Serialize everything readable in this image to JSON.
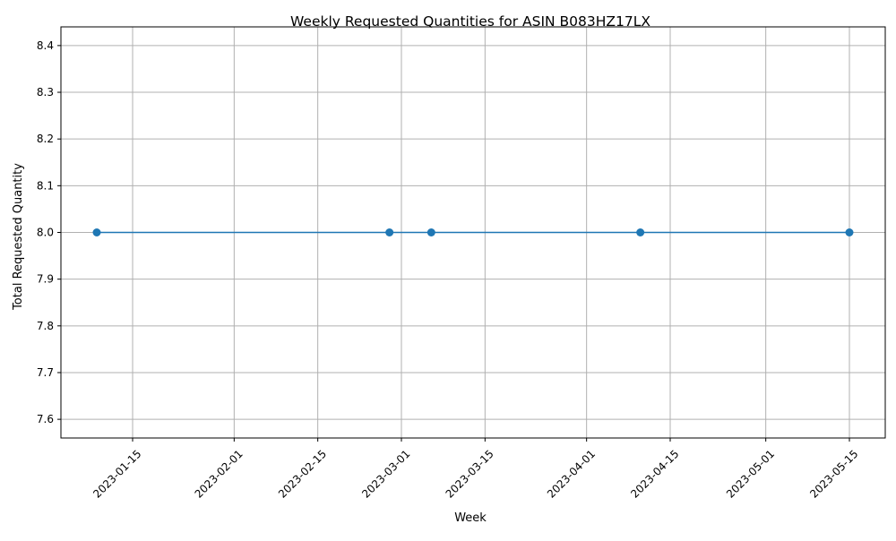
{
  "chart_data": {
    "type": "line",
    "title": "Weekly Requested Quantities for ASIN B083HZ17LX",
    "xlabel": "Week",
    "ylabel": "Total Requested Quantity",
    "x": [
      "2023-01-09",
      "2023-02-27",
      "2023-03-06",
      "2023-04-10",
      "2023-05-15"
    ],
    "series": [
      {
        "values": [
          8,
          8,
          8,
          8,
          8
        ],
        "color": "#1f77b4",
        "marker": "circle"
      }
    ],
    "xlim": [
      "2023-01-03",
      "2023-05-21"
    ],
    "ylim": [
      7.56,
      8.44
    ],
    "xticks": [
      "2023-01-15",
      "2023-02-01",
      "2023-02-15",
      "2023-03-01",
      "2023-03-15",
      "2023-04-01",
      "2023-04-15",
      "2023-05-01",
      "2023-05-15"
    ],
    "yticks": [
      7.6,
      7.7,
      7.8,
      7.9,
      8.0,
      8.1,
      8.2,
      8.3,
      8.4
    ],
    "ytick_labels": [
      "7.6",
      "7.7",
      "7.8",
      "7.9",
      "8.0",
      "8.1",
      "8.2",
      "8.3",
      "8.4"
    ],
    "grid": true,
    "legend": false
  }
}
